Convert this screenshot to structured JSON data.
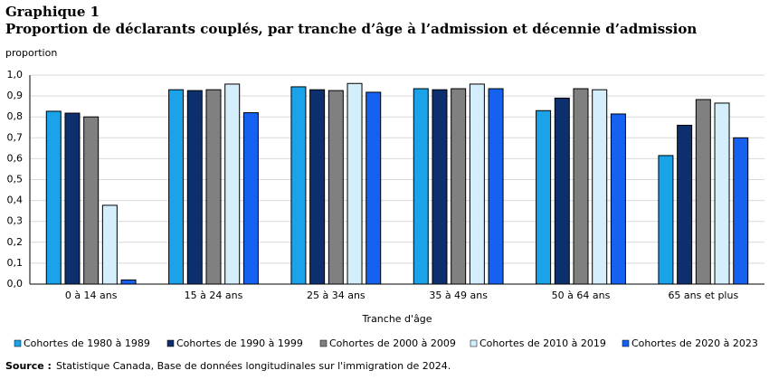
{
  "chart_data": {
    "type": "bar",
    "supertitle": "Graphique 1",
    "title": "Proportion de déclarants couplés, par tranche d’âge à l’admission et décennie d’admission",
    "y_label": "proportion",
    "x_label": "Tranche d'âge",
    "categories": [
      "0 à 14 ans",
      "15 à 24 ans",
      "25 à 34 ans",
      "35 à 49 ans",
      "50 à 64 ans",
      "65 ans et plus"
    ],
    "series": [
      {
        "name": "Cohortes de 1980 à 1989",
        "color": "#1aa3e8",
        "values": [
          0.827,
          0.93,
          0.944,
          0.935,
          0.83,
          0.615
        ]
      },
      {
        "name": "Cohortes de 1990 à 1999",
        "color": "#0d2f6e",
        "values": [
          0.818,
          0.926,
          0.93,
          0.93,
          0.89,
          0.76
        ]
      },
      {
        "name": "Cohortes de 2000 à 2009",
        "color": "#808080",
        "values": [
          0.8,
          0.93,
          0.926,
          0.935,
          0.935,
          0.883
        ]
      },
      {
        "name": "Cohortes de 2010 à 2019",
        "color": "#d4eefb",
        "values": [
          0.377,
          0.957,
          0.96,
          0.957,
          0.93,
          0.866
        ]
      },
      {
        "name": "Cohortes de 2020 à 2023",
        "color": "#1562f0",
        "values": [
          0.02,
          0.82,
          0.918,
          0.935,
          0.814,
          0.7
        ]
      }
    ],
    "ylim": [
      0,
      1
    ],
    "yticks": [
      {
        "value": 0,
        "label": "0,0"
      },
      {
        "value": 0.1,
        "label": "0,1"
      },
      {
        "value": 0.2,
        "label": "0,2"
      },
      {
        "value": 0.3,
        "label": "0,3"
      },
      {
        "value": 0.4,
        "label": "0,4"
      },
      {
        "value": 0.5,
        "label": "0,5"
      },
      {
        "value": 0.6,
        "label": "0,6"
      },
      {
        "value": 0.7,
        "label": "0,7"
      },
      {
        "value": 0.8,
        "label": "0,8"
      },
      {
        "value": 0.9,
        "label": "0,9"
      },
      {
        "value": 1,
        "label": "1,0"
      }
    ],
    "grid": true,
    "source_label": "Source :",
    "source_text": "Statistique Canada, Base de données longitudinales sur l'immigration de 2024."
  }
}
